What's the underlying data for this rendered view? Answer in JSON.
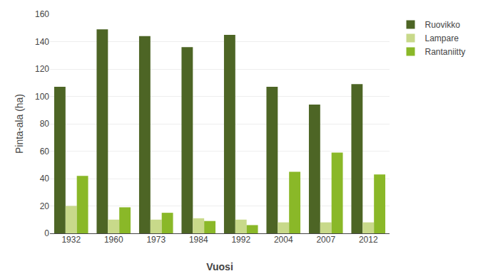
{
  "chart_data": {
    "type": "bar",
    "xlabel": "Vuosi",
    "ylabel": "Pinta-ala (ha)",
    "categories": [
      "1932",
      "1960",
      "1973",
      "1984",
      "1992",
      "2004",
      "2007",
      "2012"
    ],
    "series": [
      {
        "name": "Ruovikko",
        "color": "#4d6525",
        "values": [
          107,
          149,
          144,
          136,
          145,
          107,
          94,
          109
        ]
      },
      {
        "name": "Lampare",
        "color": "#c8d98a",
        "values": [
          20,
          10,
          10,
          11,
          10,
          8,
          8,
          8
        ]
      },
      {
        "name": "Rantaniitty",
        "color": "#8ab828",
        "values": [
          42,
          19,
          15,
          9,
          6,
          45,
          59,
          43
        ]
      }
    ],
    "ylim": [
      0,
      160
    ],
    "yticks": [
      0,
      20,
      40,
      60,
      80,
      100,
      120,
      140,
      160
    ],
    "grid": true,
    "legend": "right"
  }
}
